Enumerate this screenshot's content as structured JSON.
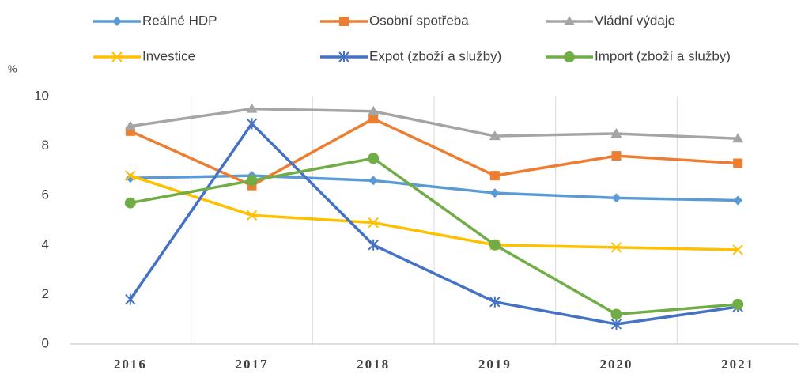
{
  "chart_data": {
    "type": "line",
    "y_unit_label": "%",
    "categories": [
      "2016",
      "2017",
      "2018",
      "2019",
      "2020",
      "2021"
    ],
    "series": [
      {
        "name": "Reálné HDP",
        "color": "#5b9bd5",
        "marker": "diamond",
        "values": [
          6.7,
          6.8,
          6.6,
          6.1,
          5.9,
          5.8
        ]
      },
      {
        "name": "Osobní spotřeba",
        "color": "#ed7d31",
        "marker": "square",
        "values": [
          8.6,
          6.4,
          9.1,
          6.8,
          7.6,
          7.3
        ]
      },
      {
        "name": "Vládní výdaje",
        "color": "#a5a5a5",
        "marker": "triangle",
        "values": [
          8.8,
          9.5,
          9.4,
          8.4,
          8.5,
          8.3
        ]
      },
      {
        "name": "Investice",
        "color": "#ffc000",
        "marker": "x",
        "values": [
          6.8,
          5.2,
          4.9,
          4.0,
          3.9,
          3.8
        ]
      },
      {
        "name": "Expot (zboží a služby)",
        "color": "#4472c4",
        "marker": "asterisk",
        "values": [
          1.8,
          8.9,
          4.0,
          1.7,
          0.8,
          1.5
        ]
      },
      {
        "name": "Import (zboží a služby)",
        "color": "#70ad47",
        "marker": "circle",
        "values": [
          5.7,
          6.6,
          7.5,
          4.0,
          1.2,
          1.6
        ]
      }
    ],
    "ylim": [
      0,
      10
    ],
    "yticks": [
      0,
      2,
      4,
      6,
      8,
      10
    ],
    "grid": "vertical-category"
  }
}
